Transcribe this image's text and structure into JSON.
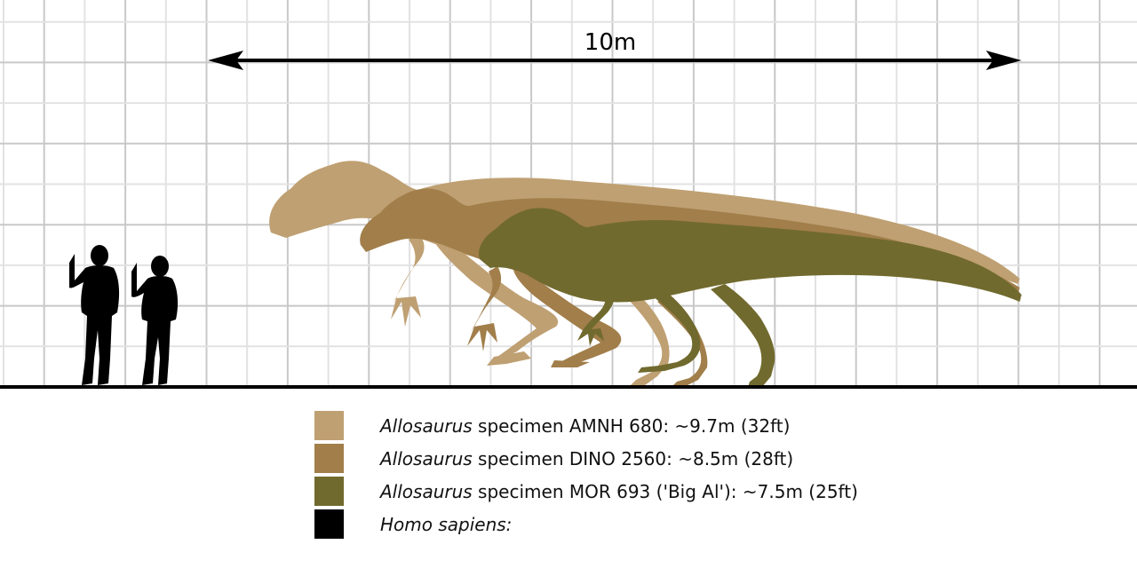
{
  "scale": {
    "label": "10m"
  },
  "colors": {
    "amnh": "#bfa072",
    "dino": "#a17e4a",
    "mor": "#716a2e",
    "human": "#000000",
    "grid_major": "#c8c8c8",
    "grid_minor": "#e2e2e2"
  },
  "legend": {
    "items": [
      {
        "genus": "Allosaurus",
        "text": " specimen AMNH 680:  ~9.7m (32ft)",
        "color": "#bfa072"
      },
      {
        "genus": "Allosaurus",
        "text": " specimen DINO 2560:  ~8.5m (28ft)",
        "color": "#a17e4a"
      },
      {
        "genus": "Allosaurus",
        "text": " specimen MOR 693 ('Big Al'):  ~7.5m (25ft)",
        "color": "#716a2e"
      },
      {
        "genus": "Homo sapiens:",
        "text": "",
        "color": "#000000"
      }
    ]
  }
}
